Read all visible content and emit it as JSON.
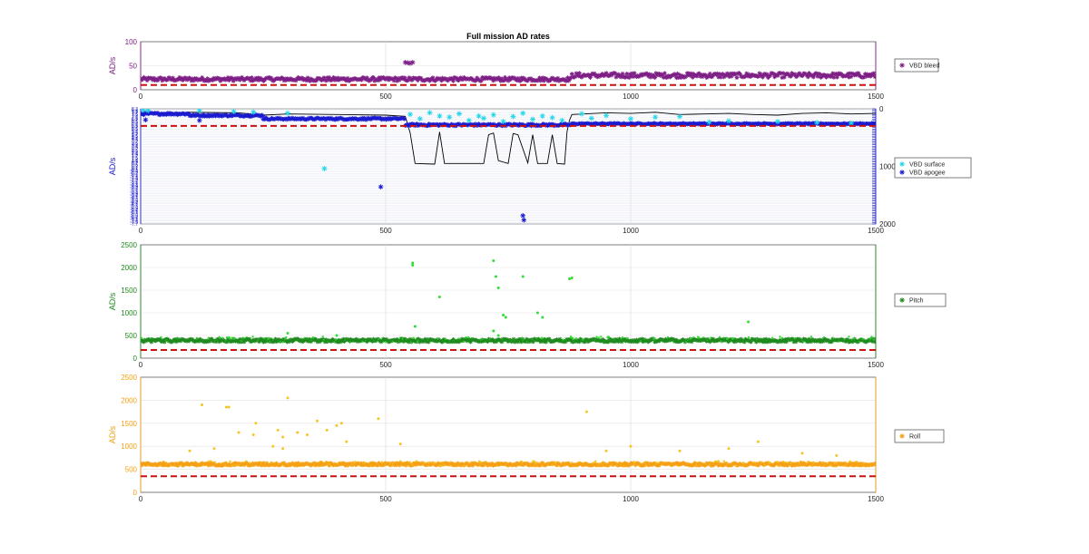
{
  "figure_title": "Full mission AD rates",
  "colors": {
    "bleed": "#7e1f86",
    "surface": "#22d6e8",
    "apogee": "#1a1ad0",
    "depth": "#000000",
    "pitch_dark": "#1f8a1f",
    "pitch_light": "#33dd33",
    "roll_dark": "#f5a013",
    "roll_light": "#f4c623",
    "threshold": "#cc1111"
  },
  "chart_data": [
    {
      "type": "scatter",
      "ylabel": "AD/s",
      "xlim": [
        0,
        1500
      ],
      "ylim": [
        0,
        100
      ],
      "xticks": [
        "0",
        "500",
        "1000",
        "1500"
      ],
      "yticks": [
        "0",
        "50",
        "100"
      ],
      "legend": [
        "VBD bleed"
      ],
      "legend_position": "outside-right",
      "threshold": 10,
      "series": [
        {
          "name": "VBD bleed",
          "marker": "*",
          "bands": [
            {
              "x": [
                0,
                880
              ],
              "y": 22,
              "spread": 7
            },
            {
              "x": [
                880,
                1500
              ],
              "y": 30,
              "spread": 9
            }
          ],
          "outliers": [
            [
              540,
              57
            ],
            [
              545,
              56
            ],
            [
              550,
              55
            ],
            [
              555,
              57
            ]
          ]
        }
      ]
    },
    {
      "type": "scatter",
      "ylabel": "AD/s",
      "xlim": [
        0,
        1500
      ],
      "xticks": [
        "0",
        "500",
        "1000",
        "1500"
      ],
      "ytick_labels_left": [
        "8.3",
        "8.1",
        "7.9",
        "7.7",
        "7.5",
        "7.3",
        "7.1",
        "6.9",
        "6.7",
        "6.5",
        "6.3",
        "6.1",
        "5.9",
        "5.7",
        "5.5",
        "5.3",
        "5.1",
        "4.9",
        "4.7",
        "4.5",
        "4.3",
        "4.1",
        "3.9",
        "3.7",
        "3.5",
        "3.3",
        "3.1",
        "2.9",
        "2.7",
        "2.5",
        "2.3",
        "2.1",
        "1.9",
        "1.7",
        "1.5",
        "1.3",
        "1.1",
        "0.9",
        "0.7",
        "0.5",
        "0.3",
        "0.1",
        "-0.1",
        "-0.3",
        "-0.5",
        "-0.7",
        "-0.9",
        "-1.1",
        "-1.3",
        "-1.5",
        "-1.7",
        "-1.9",
        "-2.1",
        "-2.3",
        "-2.5",
        "-2.7",
        "-2.9",
        "-3.1",
        "-3.3",
        "-3.5",
        "-3.7",
        "-3.9",
        "-4.1",
        "-4.3",
        "-4.5",
        "-4.7",
        "-4.9",
        "-5.1",
        "-5.3",
        "-5.5",
        "-5.7",
        "-5.9",
        "-6.1",
        "-6.3",
        "-6.5",
        "-6.7",
        "-6.9",
        "-7.1",
        "-7.3",
        "-7.5",
        "-7.7"
      ],
      "y2label_ticks": [
        "0",
        "1000",
        "2000"
      ],
      "ylim2": [
        0,
        2000
      ],
      "legend": [
        "VBD surface",
        "VBD apogee"
      ],
      "legend_position": "outside-right",
      "threshold": 5.2,
      "series": [
        {
          "name": "VBD surface",
          "marker": "*",
          "points": [
            [
              5,
              8.1
            ],
            [
              15,
              8.0
            ],
            [
              120,
              8.0
            ],
            [
              190,
              7.8
            ],
            [
              230,
              7.7
            ],
            [
              300,
              7.5
            ],
            [
              375,
              -2.5
            ],
            [
              550,
              7.3
            ],
            [
              570,
              6.5
            ],
            [
              590,
              7.6
            ],
            [
              610,
              7.0
            ],
            [
              630,
              6.8
            ],
            [
              650,
              7.4
            ],
            [
              670,
              6.2
            ],
            [
              690,
              7.0
            ],
            [
              700,
              6.6
            ],
            [
              720,
              7.2
            ],
            [
              740,
              6.0
            ],
            [
              760,
              6.9
            ],
            [
              780,
              7.5
            ],
            [
              800,
              6.4
            ],
            [
              820,
              7.0
            ],
            [
              840,
              6.7
            ],
            [
              860,
              6.2
            ],
            [
              900,
              7.4
            ],
            [
              920,
              6.6
            ],
            [
              950,
              7.1
            ],
            [
              1000,
              6.5
            ],
            [
              1050,
              6.8
            ],
            [
              1100,
              6.9
            ],
            [
              1160,
              5.9
            ],
            [
              1200,
              6.1
            ],
            [
              1300,
              6.0
            ],
            [
              1380,
              5.8
            ],
            [
              1450,
              5.7
            ]
          ]
        },
        {
          "name": "VBD apogee",
          "marker": "*",
          "bands": [
            {
              "x": [
                0,
                100
              ],
              "y": 7.4,
              "spread": 0.35
            },
            {
              "x": [
                100,
                250
              ],
              "y": 7.1,
              "spread": 0.3
            },
            {
              "x": [
                250,
                540
              ],
              "y": 6.5,
              "spread": 0.3
            },
            {
              "x": [
                540,
                880
              ],
              "y": 5.4,
              "spread": 0.35
            },
            {
              "x": [
                880,
                1500
              ],
              "y": 5.6,
              "spread": 0.2
            }
          ],
          "outliers": [
            [
              10,
              6.3
            ],
            [
              120,
              6.2
            ],
            [
              490,
              -5.8
            ],
            [
              780,
              -11.0
            ],
            [
              782,
              -11.8
            ]
          ]
        },
        {
          "name": "depth",
          "axis": "right",
          "type": "line",
          "points": [
            [
              0,
              80
            ],
            [
              100,
              60
            ],
            [
              200,
              70
            ],
            [
              250,
              110
            ],
            [
              300,
              90
            ],
            [
              400,
              100
            ],
            [
              500,
              110
            ],
            [
              540,
              130
            ],
            [
              550,
              420
            ],
            [
              560,
              950
            ],
            [
              600,
              960
            ],
            [
              610,
              400
            ],
            [
              620,
              950
            ],
            [
              700,
              950
            ],
            [
              710,
              450
            ],
            [
              720,
              420
            ],
            [
              730,
              900
            ],
            [
              750,
              950
            ],
            [
              760,
              430
            ],
            [
              770,
              450
            ],
            [
              790,
              940
            ],
            [
              800,
              450
            ],
            [
              810,
              950
            ],
            [
              830,
              950
            ],
            [
              840,
              450
            ],
            [
              850,
              950
            ],
            [
              865,
              960
            ],
            [
              870,
              400
            ],
            [
              875,
              200
            ],
            [
              880,
              100
            ],
            [
              950,
              70
            ],
            [
              1000,
              80
            ],
            [
              1050,
              60
            ],
            [
              1100,
              100
            ],
            [
              1150,
              90
            ],
            [
              1200,
              80
            ],
            [
              1250,
              100
            ],
            [
              1300,
              110
            ],
            [
              1350,
              80
            ],
            [
              1400,
              70
            ],
            [
              1450,
              90
            ],
            [
              1500,
              80
            ]
          ]
        }
      ]
    },
    {
      "type": "scatter",
      "ylabel": "AD/s",
      "xlim": [
        0,
        1500
      ],
      "ylim": [
        0,
        2500
      ],
      "xticks": [
        "0",
        "500",
        "1000",
        "1500"
      ],
      "yticks": [
        "0",
        "500",
        "1000",
        "1500",
        "2000",
        "2500"
      ],
      "legend": [
        "Pitch"
      ],
      "legend_position": "outside-right",
      "threshold": 180,
      "series": [
        {
          "name": "Pitch",
          "marker": "*",
          "bands": [
            {
              "x": [
                0,
                1500
              ],
              "y": 390,
              "spread": 60
            }
          ],
          "outliers": [
            [
              555,
              2100
            ],
            [
              555,
              2050
            ],
            [
              610,
              1350
            ],
            [
              720,
              2150
            ],
            [
              725,
              1800
            ],
            [
              730,
              1550
            ],
            [
              740,
              950
            ],
            [
              745,
              900
            ],
            [
              780,
              1800
            ],
            [
              810,
              1000
            ],
            [
              820,
              900
            ],
            [
              875,
              1750
            ],
            [
              880,
              1770
            ],
            [
              560,
              700
            ],
            [
              720,
              600
            ],
            [
              730,
              500
            ],
            [
              1240,
              800
            ],
            [
              300,
              550
            ],
            [
              400,
              500
            ]
          ]
        }
      ]
    },
    {
      "type": "scatter",
      "ylabel": "AD/s",
      "xlim": [
        0,
        1500
      ],
      "ylim": [
        0,
        2500
      ],
      "xticks": [
        "0",
        "500",
        "1000",
        "1500"
      ],
      "yticks": [
        "0",
        "500",
        "1000",
        "1500",
        "2000",
        "2500"
      ],
      "legend": [
        "Roll"
      ],
      "legend_position": "outside-right",
      "threshold": 350,
      "series": [
        {
          "name": "Roll",
          "marker": "*",
          "bands": [
            {
              "x": [
                0,
                1500
              ],
              "y": 610,
              "spread": 50
            }
          ],
          "outliers": [
            [
              125,
              1900
            ],
            [
              175,
              1850
            ],
            [
              180,
              1850
            ],
            [
              235,
              1500
            ],
            [
              300,
              2050
            ],
            [
              360,
              1550
            ],
            [
              400,
              1450
            ],
            [
              410,
              1500
            ],
            [
              485,
              1600
            ],
            [
              910,
              1750
            ],
            [
              280,
              1350
            ],
            [
              290,
              1200
            ],
            [
              320,
              1300
            ],
            [
              200,
              1300
            ],
            [
              230,
              1250
            ],
            [
              270,
              1000
            ],
            [
              290,
              950
            ],
            [
              340,
              1250
            ],
            [
              380,
              1350
            ],
            [
              420,
              1100
            ],
            [
              530,
              1050
            ],
            [
              950,
              900
            ],
            [
              1000,
              1000
            ],
            [
              1100,
              900
            ],
            [
              1200,
              950
            ],
            [
              1260,
              1100
            ],
            [
              1350,
              850
            ],
            [
              1420,
              800
            ],
            [
              100,
              900
            ],
            [
              150,
              950
            ]
          ]
        }
      ]
    }
  ]
}
